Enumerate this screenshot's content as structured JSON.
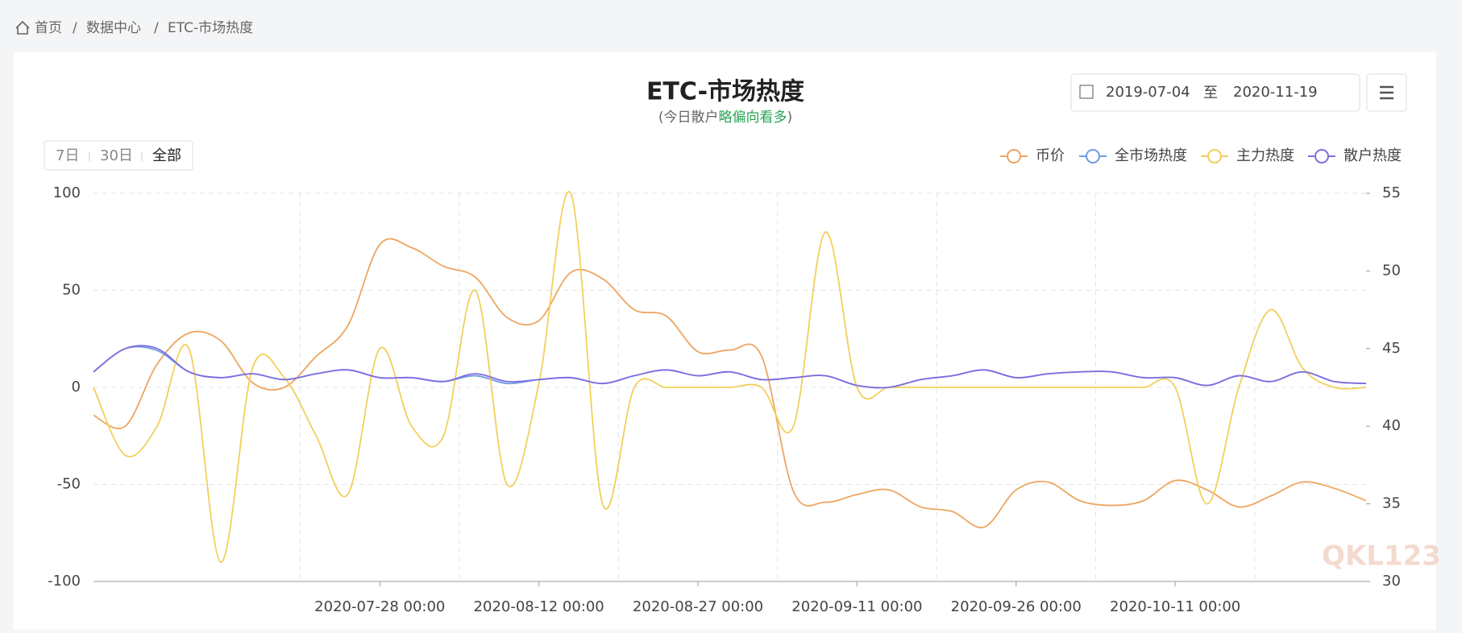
{
  "breadcrumb": [
    "首页",
    "数据中心",
    "ETC-市场热度"
  ],
  "date_range": {
    "start": "2019-07-04",
    "separator": "至",
    "end": "2020-11-19"
  },
  "range_buttons": [
    "7日",
    "30日",
    "全部"
  ],
  "watermark": "QKL123",
  "chart_data": {
    "type": "line",
    "title": "ETC-市场热度",
    "subtitle": {
      "open": "(今日散户",
      "highlight": "略偏向看多",
      "close": ")"
    },
    "categories": [
      null,
      null,
      null,
      null,
      null,
      null,
      null,
      null,
      null,
      "2020-07-28 00:00",
      null,
      null,
      null,
      null,
      "2020-08-12 00:00",
      null,
      null,
      null,
      null,
      "2020-08-27 00:00",
      null,
      null,
      null,
      null,
      "2020-09-11 00:00",
      null,
      null,
      null,
      null,
      "2020-09-26 00:00",
      null,
      null,
      null,
      null,
      "2020-10-11 00:00",
      null,
      null,
      null,
      null,
      null,
      null
    ],
    "ylim": [
      -100,
      100
    ],
    "yticks": [
      -100,
      -50,
      0,
      50,
      100
    ],
    "y2lim": [
      30,
      55
    ],
    "y2ticks": [
      30,
      35,
      40,
      45,
      50,
      55
    ],
    "grid": true,
    "legend": "top-right",
    "series": [
      {
        "name": "币价",
        "color": "#eea560",
        "axis": "y2",
        "values": [
          40.7,
          40.0,
          44.0,
          46.0,
          45.5,
          42.8,
          42.5,
          44.5,
          46.5,
          51.7,
          51.5,
          50.3,
          49.6,
          47.0,
          46.8,
          49.9,
          49.5,
          47.5,
          47.1,
          44.8,
          44.9,
          44.5,
          35.8,
          35.1,
          35.6,
          35.9,
          34.8,
          34.5,
          33.5,
          35.9,
          36.4,
          35.2,
          34.9,
          35.2,
          36.5,
          35.9,
          34.8,
          35.5,
          36.4,
          36.0,
          35.2
        ]
      },
      {
        "name": "全市场热度",
        "color": "#6f9be0",
        "values": [
          8,
          20,
          19,
          8,
          5,
          7,
          4,
          7,
          9,
          5,
          5,
          3,
          6,
          2,
          4,
          5,
          2,
          6,
          9,
          6,
          8,
          4,
          5,
          6,
          1,
          0,
          4,
          6,
          9,
          5,
          7,
          8,
          8,
          5,
          5,
          1,
          6,
          3,
          8,
          3,
          2
        ]
      },
      {
        "name": "主力热度",
        "color": "#f2cf5b",
        "values": [
          0,
          -35,
          -20,
          20,
          -90,
          10,
          5,
          -25,
          -55,
          20,
          -20,
          -25,
          50,
          -50,
          2,
          100,
          -60,
          0,
          0,
          0,
          0,
          0,
          -20,
          80,
          0,
          0,
          0,
          0,
          0,
          0,
          0,
          0,
          0,
          0,
          0,
          -60,
          0,
          40,
          10,
          0,
          0
        ]
      },
      {
        "name": "散户热度",
        "color": "#7e6ee0",
        "values": [
          8,
          20,
          20,
          8,
          5,
          7,
          4,
          7,
          9,
          5,
          5,
          3,
          7,
          3,
          4,
          5,
          2,
          6,
          9,
          6,
          8,
          4,
          5,
          6,
          1,
          0,
          4,
          6,
          9,
          5,
          7,
          8,
          8,
          5,
          5,
          1,
          6,
          3,
          8,
          3,
          2
        ]
      }
    ]
  }
}
